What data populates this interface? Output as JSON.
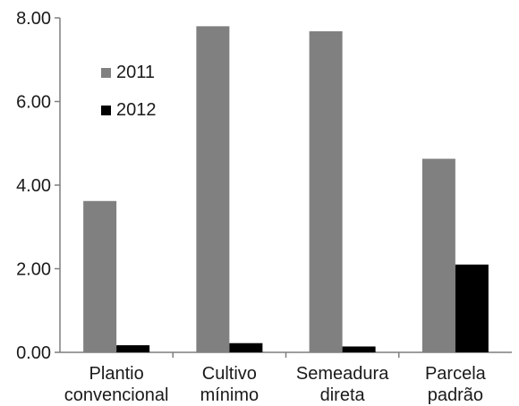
{
  "chart_data": {
    "type": "bar",
    "title": "",
    "xlabel": "",
    "ylabel": "",
    "ylim": [
      0,
      8
    ],
    "yticks": [
      "0.00",
      "2.00",
      "4.00",
      "6.00",
      "8.00"
    ],
    "ytick_values": [
      0,
      2,
      4,
      6,
      8
    ],
    "grid": false,
    "legend_position": "top-left",
    "categories": [
      [
        "Plantio",
        "convencional"
      ],
      [
        "Cultivo",
        "mínimo"
      ],
      [
        "Semeadura",
        "direta"
      ],
      [
        "Parcela",
        "padrão"
      ]
    ],
    "series": [
      {
        "name": "2011",
        "color": "#808080",
        "values": [
          3.62,
          7.8,
          7.68,
          4.63
        ]
      },
      {
        "name": "2012",
        "color": "#000000",
        "values": [
          0.17,
          0.22,
          0.14,
          2.1
        ]
      }
    ]
  }
}
